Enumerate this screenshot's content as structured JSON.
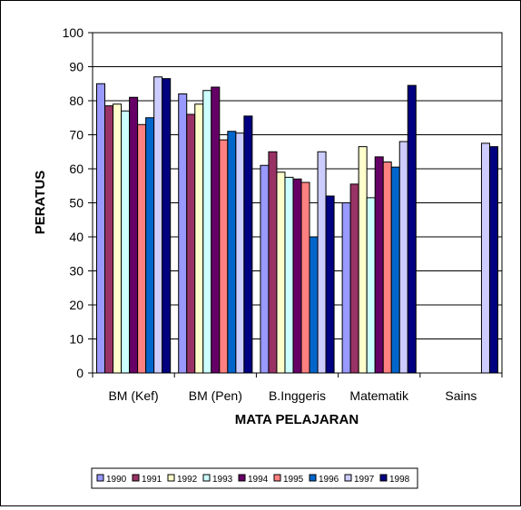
{
  "chart_data": {
    "type": "bar",
    "xlabel": "MATA PELAJARAN",
    "ylabel": "PERATUS",
    "ylim": [
      0,
      100
    ],
    "yticks": [
      0,
      10,
      20,
      30,
      40,
      50,
      60,
      70,
      80,
      90,
      100
    ],
    "grid": true,
    "legend_position": "bottom",
    "categories": [
      "BM (Kef)",
      "BM (Pen)",
      "B.Inggeris",
      "Matematik",
      "Sains"
    ],
    "series": [
      {
        "name": "1990",
        "color": "#9999FF",
        "values": [
          85,
          82,
          61,
          50,
          null
        ]
      },
      {
        "name": "1991",
        "color": "#993366",
        "values": [
          78.5,
          76,
          65,
          55.5,
          null
        ]
      },
      {
        "name": "1992",
        "color": "#FFFFCC",
        "values": [
          79,
          79,
          59,
          66.5,
          null
        ]
      },
      {
        "name": "1993",
        "color": "#CCFFFF",
        "values": [
          77,
          83,
          57.5,
          51.5,
          null
        ]
      },
      {
        "name": "1994",
        "color": "#660066",
        "values": [
          81,
          84,
          57,
          63.5,
          null
        ]
      },
      {
        "name": "1995",
        "color": "#FF8080",
        "values": [
          73,
          68.5,
          56,
          62,
          null
        ]
      },
      {
        "name": "1996",
        "color": "#0066CC",
        "values": [
          75,
          71,
          40,
          60.5,
          null
        ]
      },
      {
        "name": "1997",
        "color": "#CCCCFF",
        "values": [
          87,
          70.5,
          65,
          68,
          67.5
        ]
      },
      {
        "name": "1998",
        "color": "#000080",
        "values": [
          86.5,
          75.5,
          52,
          84.5,
          66.5
        ]
      }
    ]
  }
}
